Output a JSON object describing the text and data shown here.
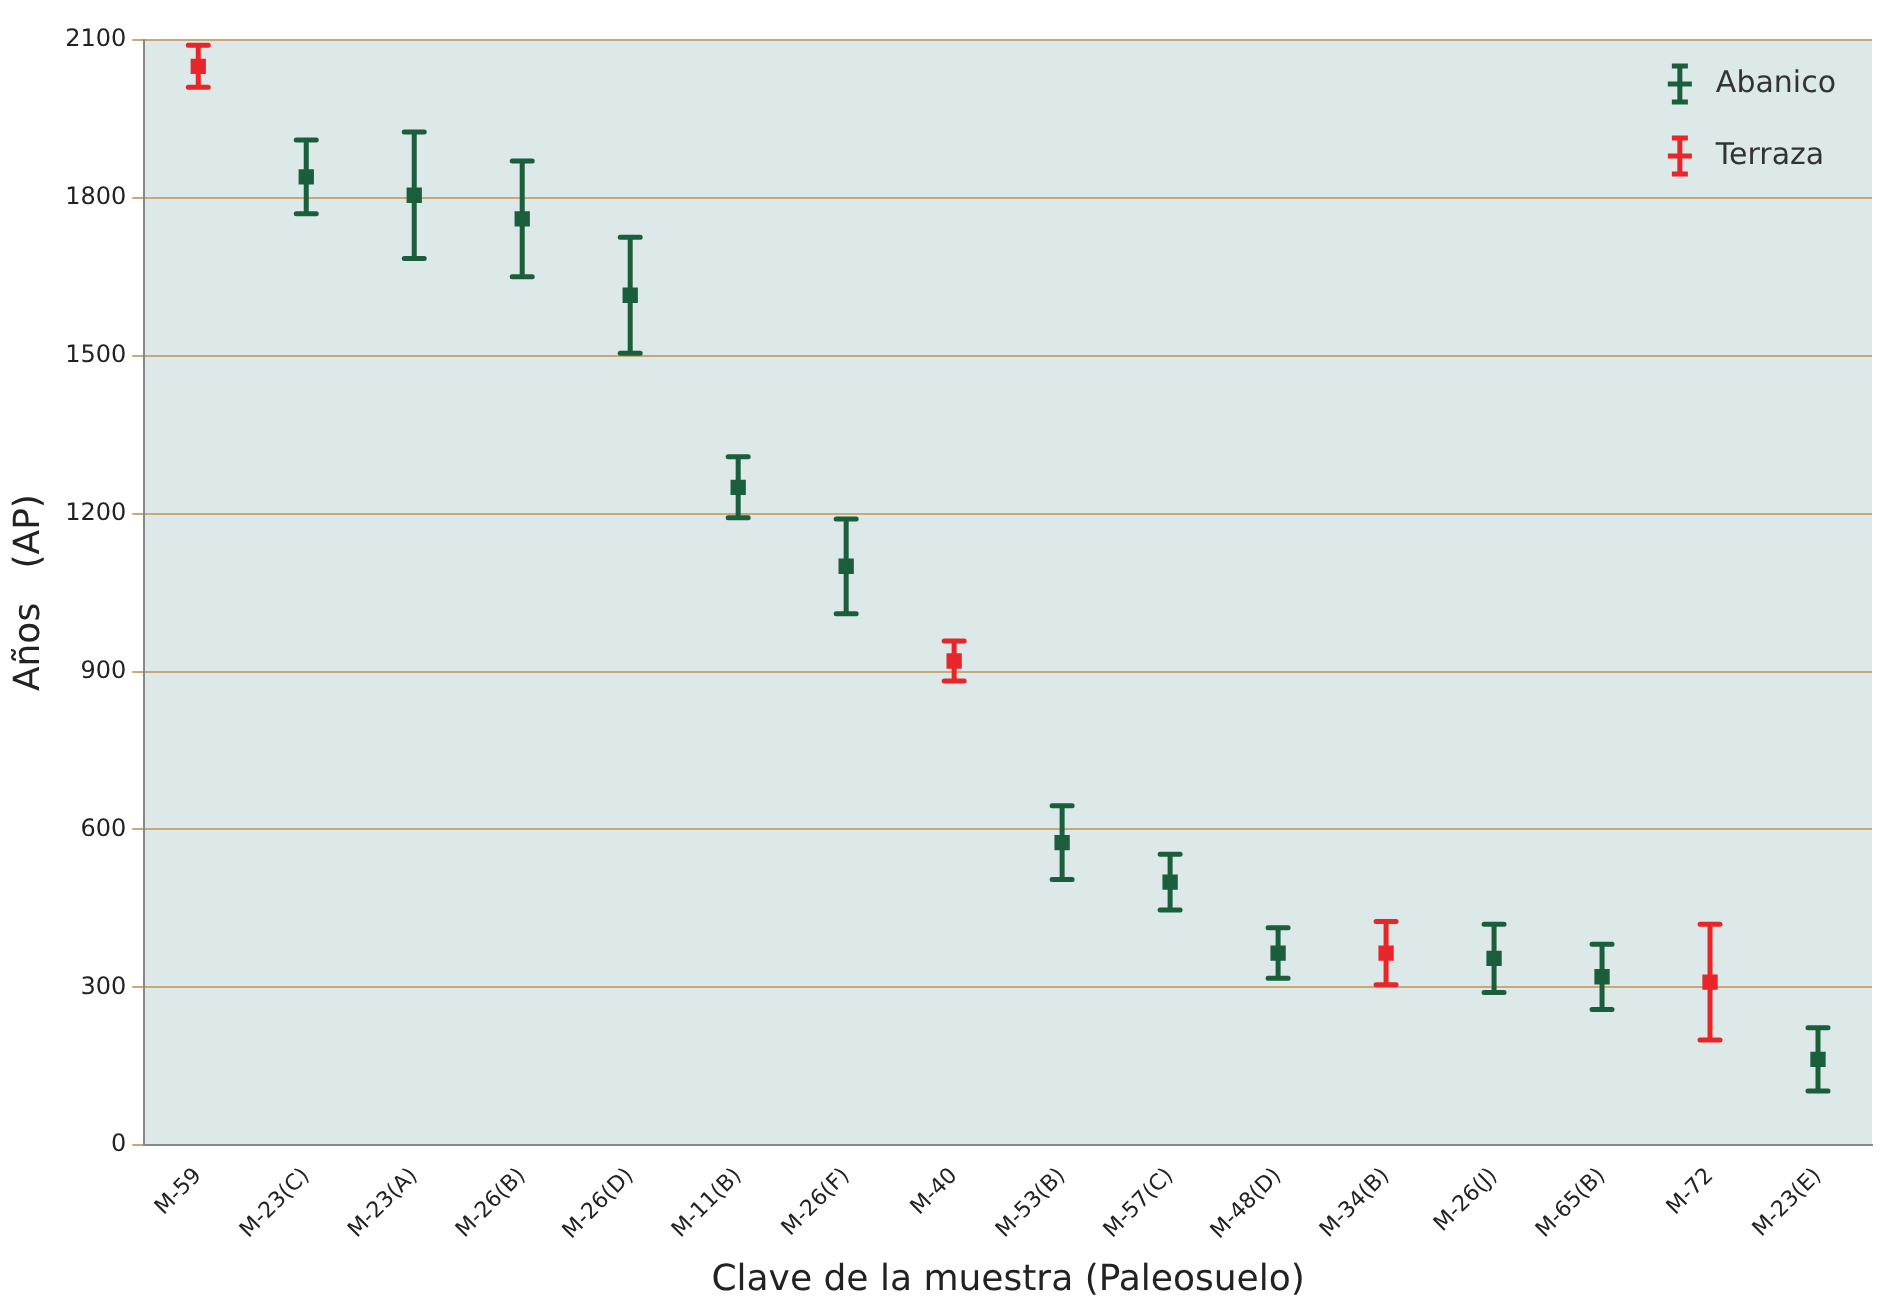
{
  "chart_data": {
    "type": "scatter",
    "xlabel": "Clave de la muestra (Paleosuelo)",
    "ylabel": "Años   (AP)",
    "categories": [
      "M-59",
      "M-23(C)",
      "M-23(A)",
      "M-26(B)",
      "M-26(D)",
      "M-11(B)",
      "M-26(F)",
      "M-40",
      "M-53(B)",
      "M-57(C)",
      "M-48(D)",
      "M-34(B)",
      "M-26(J)",
      "M-65(B)",
      "M-72",
      "M-23(E)"
    ],
    "series": [
      {
        "name": "Abanico",
        "color": "#1b5e3b",
        "values": [
          null,
          1840,
          1805,
          1760,
          1615,
          1250,
          1100,
          null,
          575,
          500,
          365,
          null,
          355,
          320,
          null,
          163
        ],
        "errors": [
          null,
          70,
          120,
          110,
          110,
          58,
          90,
          null,
          70,
          53,
          48,
          null,
          65,
          62,
          null,
          60
        ]
      },
      {
        "name": "Terraza",
        "color": "#e8262a",
        "values": [
          2050,
          null,
          null,
          null,
          null,
          null,
          null,
          920,
          null,
          null,
          null,
          365,
          null,
          null,
          310,
          null
        ],
        "errors": [
          40,
          null,
          null,
          null,
          null,
          null,
          null,
          38,
          null,
          null,
          null,
          60,
          null,
          null,
          110,
          null
        ]
      }
    ],
    "ylim": [
      0,
      2100
    ],
    "yticks": [
      0,
      300,
      600,
      900,
      1200,
      1500,
      1800,
      2100
    ],
    "grid": "y",
    "legend": "top right",
    "marker": "square"
  }
}
